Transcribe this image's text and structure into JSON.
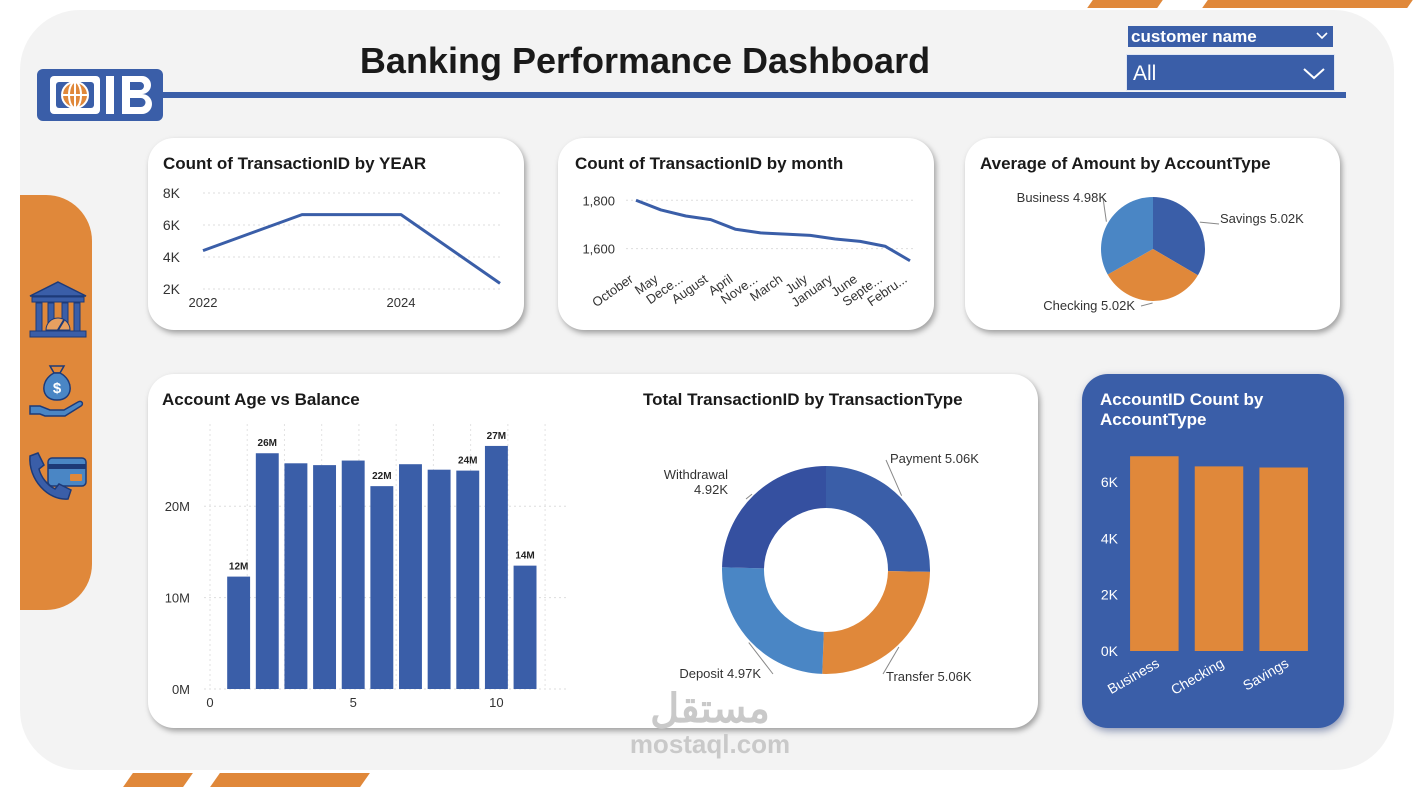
{
  "header": {
    "title": "Banking Performance Dashboard"
  },
  "slicer": {
    "label": "customer name",
    "value": "All"
  },
  "nav": {
    "items": [
      {
        "icon": "bank-icon"
      },
      {
        "icon": "money-bag-hand-icon"
      },
      {
        "icon": "phone-card-icon"
      }
    ]
  },
  "colors": {
    "primary_blue": "#3a5ea8",
    "orange": "#e0883a",
    "light_blue": "#4a86c5",
    "dark_blue": "#3550a0"
  },
  "watermark": {
    "arabic": "مستقل",
    "latin": "mostaql.com"
  },
  "chart_data": [
    {
      "id": "year",
      "type": "line",
      "title": "Count of TransactionID by YEAR",
      "x": [
        2022,
        2023,
        2024,
        2025
      ],
      "x_ticks": [
        "2022",
        "2024"
      ],
      "values": [
        4400,
        6650,
        6650,
        2350
      ],
      "y_ticks": [
        "2K",
        "4K",
        "6K",
        "8K"
      ],
      "ylim": [
        2000,
        8000
      ],
      "grid": true
    },
    {
      "id": "month",
      "type": "line",
      "title": "Count of TransactionID by month",
      "categories": [
        "October",
        "May",
        "Dece...",
        "August",
        "April",
        "Nove...",
        "March",
        "July",
        "January",
        "June",
        "Septe...",
        "Febru..."
      ],
      "values": [
        1800,
        1760,
        1735,
        1720,
        1680,
        1665,
        1660,
        1655,
        1640,
        1630,
        1610,
        1550
      ],
      "y_ticks": [
        "1,600",
        "1,800"
      ],
      "ylim": [
        1520,
        1830
      ],
      "grid": true
    },
    {
      "id": "avg_amount",
      "type": "pie",
      "title": "Average of Amount by AccountType",
      "slices": [
        {
          "label": "Savings 5.02K",
          "value": 5.02,
          "color": "#3a5ea8"
        },
        {
          "label": "Checking 5.02K",
          "value": 5.02,
          "color": "#e0883a"
        },
        {
          "label": "Business 4.98K",
          "value": 4.98,
          "color": "#4a86c5"
        }
      ]
    },
    {
      "id": "age_balance",
      "type": "bar",
      "title": "Account Age vs Balance",
      "x": [
        1,
        2,
        3,
        4,
        5,
        6,
        7,
        8,
        9,
        10,
        11
      ],
      "values": [
        12.3,
        25.8,
        24.7,
        24.5,
        25.0,
        22.2,
        24.6,
        24.0,
        23.9,
        26.6,
        13.5
      ],
      "data_labels": [
        "12M",
        "26M",
        "",
        "",
        "",
        "22M",
        "",
        "",
        "24M",
        "27M",
        "14M"
      ],
      "x_ticks": [
        "0",
        "5",
        "10"
      ],
      "y_ticks": [
        "0M",
        "10M",
        "20M"
      ],
      "ylim": [
        0,
        29
      ],
      "color": "#3a5ea8"
    },
    {
      "id": "txn_type",
      "type": "pie",
      "title": "Total TransactionID by TransactionType",
      "donut": true,
      "slices": [
        {
          "label": "Payment 5.06K",
          "value": 5.06,
          "color": "#3a5ea8"
        },
        {
          "label": "Transfer 5.06K",
          "value": 5.06,
          "color": "#e0883a"
        },
        {
          "label": "Deposit 4.97K",
          "value": 4.97,
          "color": "#4a86c5"
        },
        {
          "label_lines": [
            "Withdrawal",
            "4.92K"
          ],
          "value": 4.92,
          "color": "#3550a0"
        }
      ]
    },
    {
      "id": "account_count",
      "type": "bar",
      "title_lines": [
        "AccountID Count by",
        "AccountType"
      ],
      "categories": [
        "Business",
        "Checking",
        "Savings"
      ],
      "values": [
        6920,
        6560,
        6520
      ],
      "y_ticks": [
        "0K",
        "2K",
        "4K",
        "6K"
      ],
      "ylim": [
        0,
        7000
      ],
      "color": "#e0883a"
    }
  ]
}
